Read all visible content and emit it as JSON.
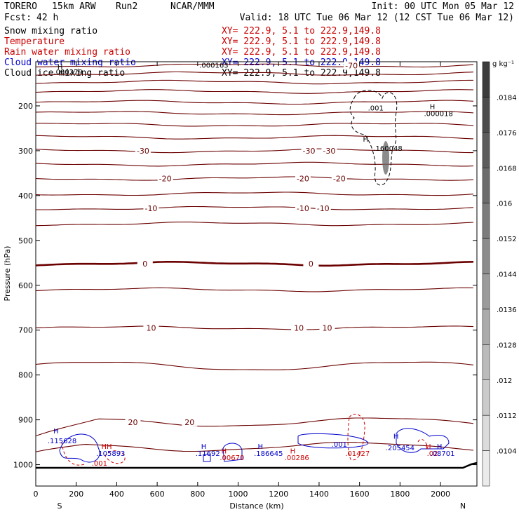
{
  "header": {
    "model": "TORERO",
    "run_desc": "15km ARW",
    "run": "Run2",
    "org": "NCAR/MMM",
    "init": "Init: 00 UTC Mon 05 Mar 12",
    "fcst_label": "Fcst:",
    "fcst_value": "42 h",
    "valid": "Valid: 18 UTC Tue 06 Mar 12 (12 CST Tue 06 Mar 12)"
  },
  "legend": [
    {
      "name": "Snow mixing ratio",
      "xy": "XY= 222.9,  5.1 to 222.9,149.8",
      "color": "#000000"
    },
    {
      "name": "Temperature",
      "xy": "XY= 222.9,  5.1 to 222.9,149.8",
      "color": "#cc0000"
    },
    {
      "name": "Rain water mixing ratio",
      "xy": "XY= 222.9,  5.1 to 222.9,149.8",
      "color": "#cc0000"
    },
    {
      "name": "Cloud water mixing ratio",
      "xy": "XY= 222.9,  5.1 to 222.9,149.8",
      "color": "#0000cc"
    },
    {
      "name": "Cloud ice mixing ratio",
      "xy": "XY= 222.9,  5.1 to 222.9,149.8",
      "color": "#000000"
    }
  ],
  "chart_data": {
    "type": "cross-section contour",
    "xlabel": "Distance (km)",
    "ylabel": "Pressure (hPa)",
    "xlim": [
      0,
      2180
    ],
    "ylim": [
      100,
      1050
    ],
    "x_ticks": [
      0,
      200,
      400,
      600,
      800,
      1000,
      1200,
      1400,
      1600,
      1800,
      2000
    ],
    "y_ticks": [
      200,
      300,
      400,
      500,
      600,
      700,
      800,
      900,
      1000
    ],
    "end_labels": {
      "left": "S",
      "right": "N"
    },
    "colorbar": {
      "units": "g kg⁻¹",
      "labels": [
        ".0184",
        ".0176",
        ".0168",
        ".016",
        ".0152",
        ".0144",
        ".0136",
        ".0128",
        ".012",
        ".0112",
        ".0104"
      ]
    },
    "isotherms": [
      {
        "value": -70,
        "p": 110
      },
      {
        "value": -65,
        "p": 128
      },
      {
        "value": -60,
        "p": 147
      },
      {
        "value": -55,
        "p": 168
      },
      {
        "value": -50,
        "p": 192
      },
      {
        "value": -45,
        "p": 216
      },
      {
        "value": -40,
        "p": 242
      },
      {
        "value": -35,
        "p": 270
      },
      {
        "value": -30,
        "p": 300
      },
      {
        "value": -25,
        "p": 330
      },
      {
        "value": -20,
        "p": 362
      },
      {
        "value": -15,
        "p": 396
      },
      {
        "value": -10,
        "p": 428
      },
      {
        "value": -5,
        "p": 463
      },
      {
        "value": 0,
        "p": 552
      },
      {
        "value": 5,
        "p": 610
      },
      {
        "value": 10,
        "p": 695
      },
      {
        "value": 15,
        "p": 780
      },
      {
        "value": 20,
        "p": 905
      },
      {
        "value": 25,
        "p": 960
      }
    ],
    "isotherm_labels": [
      {
        "text": "-70",
        "x": 1560,
        "p": 110
      },
      {
        "text": "-30",
        "x": 530,
        "p": 300
      },
      {
        "text": "-30",
        "x": 1350,
        "p": 300
      },
      {
        "text": "-30",
        "x": 1450,
        "p": 300
      },
      {
        "text": "-20",
        "x": 640,
        "p": 362
      },
      {
        "text": "-20",
        "x": 1320,
        "p": 362
      },
      {
        "text": "-20",
        "x": 1500,
        "p": 362
      },
      {
        "text": "-10",
        "x": 570,
        "p": 428
      },
      {
        "text": "-10",
        "x": 1320,
        "p": 428
      },
      {
        "text": "-10",
        "x": 1420,
        "p": 428
      },
      {
        "text": "0",
        "x": 540,
        "p": 552
      },
      {
        "text": "0",
        "x": 1360,
        "p": 552
      },
      {
        "text": "10",
        "x": 570,
        "p": 695
      },
      {
        "text": "10",
        "x": 1300,
        "p": 695
      },
      {
        "text": "10",
        "x": 1440,
        "p": 695
      },
      {
        "text": "20",
        "x": 480,
        "p": 905
      },
      {
        "text": "20",
        "x": 760,
        "p": 905
      }
    ],
    "annotations": [
      {
        "text": "H",
        "x": 120,
        "p": 118,
        "color": "#000000"
      },
      {
        "text": ".000279",
        "x": 160,
        "p": 130,
        "color": "#000000"
      },
      {
        "text": ".000163",
        "x": 880,
        "p": 115,
        "color": "#000000"
      },
      {
        "text": ".001",
        "x": 1680,
        "p": 210,
        "color": "#000000"
      },
      {
        "text": "H",
        "x": 1960,
        "p": 207,
        "color": "#000000"
      },
      {
        "text": ".000018",
        "x": 1990,
        "p": 223,
        "color": "#000000"
      },
      {
        "text": "H",
        "x": 1630,
        "p": 280,
        "color": "#000000"
      },
      {
        "text": ".160048",
        "x": 1740,
        "p": 300,
        "color": "#000000"
      },
      {
        "text": "H",
        "x": 100,
        "p": 930,
        "color": "#0000cc"
      },
      {
        "text": ".115628",
        "x": 130,
        "p": 952,
        "color": "#0000cc"
      },
      {
        "text": "HH",
        "x": 350,
        "p": 965,
        "color": "#cc0000"
      },
      {
        "text": ".105893",
        "x": 370,
        "p": 980,
        "color": "#0000cc"
      },
      {
        "text": ".001",
        "x": 315,
        "p": 1002,
        "color": "#cc0000"
      },
      {
        "text": "H",
        "x": 830,
        "p": 965,
        "color": "#0000cc"
      },
      {
        "text": ".11692",
        "x": 850,
        "p": 980,
        "color": "#0000cc"
      },
      {
        "text": "H",
        "x": 930,
        "p": 975,
        "color": "#cc0000"
      },
      {
        "text": ".00670",
        "x": 970,
        "p": 990,
        "color": "#cc0000"
      },
      {
        "text": "H",
        "x": 1110,
        "p": 965,
        "color": "#0000cc"
      },
      {
        "text": ".186645",
        "x": 1150,
        "p": 980,
        "color": "#0000cc"
      },
      {
        "text": "H",
        "x": 1270,
        "p": 975,
        "color": "#cc0000"
      },
      {
        "text": ".00286",
        "x": 1290,
        "p": 990,
        "color": "#cc0000"
      },
      {
        "text": ".001",
        "x": 1500,
        "p": 960,
        "color": "#0000cc"
      },
      {
        "text": ".01427",
        "x": 1590,
        "p": 980,
        "color": "#cc0000"
      },
      {
        "text": "H",
        "x": 1780,
        "p": 942,
        "color": "#0000cc"
      },
      {
        "text": ".205454",
        "x": 1800,
        "p": 968,
        "color": "#0000cc"
      },
      {
        "text": "H",
        "x": 1940,
        "p": 965,
        "color": "#cc0000"
      },
      {
        "text": "H",
        "x": 1995,
        "p": 965,
        "color": "#0000cc"
      },
      {
        "text": ".02",
        "x": 1960,
        "p": 980,
        "color": "#cc0000"
      },
      {
        "text": ".08701",
        "x": 2010,
        "p": 980,
        "color": "#0000cc"
      }
    ]
  }
}
